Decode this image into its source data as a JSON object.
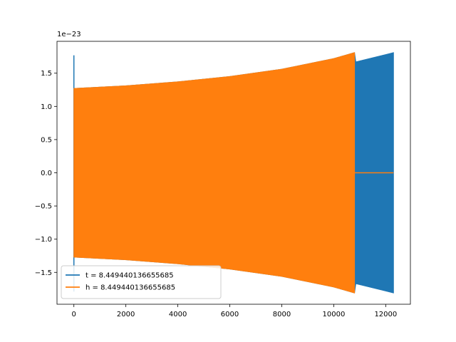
{
  "chart_data": {
    "type": "line",
    "title": "",
    "xlabel": "",
    "ylabel": "",
    "xlim": [
      -650,
      12950
    ],
    "ylim": [
      -1.98,
      1.98
    ],
    "y_offset_label": "1e−23",
    "x_ticks": [
      {
        "value": 0,
        "label": "0"
      },
      {
        "value": 2000,
        "label": "2000"
      },
      {
        "value": 4000,
        "label": "4000"
      },
      {
        "value": 6000,
        "label": "6000"
      },
      {
        "value": 8000,
        "label": "8000"
      },
      {
        "value": 10000,
        "label": "10000"
      },
      {
        "value": 12000,
        "label": "12000"
      }
    ],
    "y_ticks": [
      {
        "value": 1.5,
        "label": "1.5"
      },
      {
        "value": 1.0,
        "label": "1.0"
      },
      {
        "value": 0.5,
        "label": "0.5"
      },
      {
        "value": 0.0,
        "label": "0.0"
      },
      {
        "value": -0.5,
        "label": "−0.5"
      },
      {
        "value": -1.0,
        "label": "−1.0"
      },
      {
        "value": -1.5,
        "label": "−1.5"
      }
    ],
    "grid": false,
    "legend_position": "lower-left",
    "series": [
      {
        "name": "t = 8.449440136655685",
        "color": "#1f77b4",
        "kind": "oscillating-envelope",
        "spike": {
          "x": 0,
          "max": 1.77,
          "min": -1.79
        },
        "envelope": [
          {
            "x": 0,
            "amp": 1.27
          },
          {
            "x": 2000,
            "amp": 1.31
          },
          {
            "x": 4000,
            "amp": 1.37
          },
          {
            "x": 6000,
            "amp": 1.45
          },
          {
            "x": 8000,
            "amp": 1.56
          },
          {
            "x": 10000,
            "amp": 1.72
          },
          {
            "x": 10800,
            "amp": 1.81
          },
          {
            "x": 10850,
            "amp": 1.67
          },
          {
            "x": 12000,
            "amp": 1.78
          },
          {
            "x": 12300,
            "amp": 1.81
          }
        ],
        "x_end": 12300
      },
      {
        "name": "h = 8.449440136655685",
        "color": "#ff7f0e",
        "kind": "oscillating-envelope",
        "envelope": [
          {
            "x": 0,
            "amp": 1.27
          },
          {
            "x": 2000,
            "amp": 1.31
          },
          {
            "x": 4000,
            "amp": 1.37
          },
          {
            "x": 6000,
            "amp": 1.45
          },
          {
            "x": 8000,
            "amp": 1.56
          },
          {
            "x": 10000,
            "amp": 1.72
          },
          {
            "x": 10800,
            "amp": 1.81
          }
        ],
        "x_end": 10800,
        "flat_after": {
          "x_start": 10800,
          "x_end": 12300,
          "y": 0
        }
      }
    ]
  }
}
